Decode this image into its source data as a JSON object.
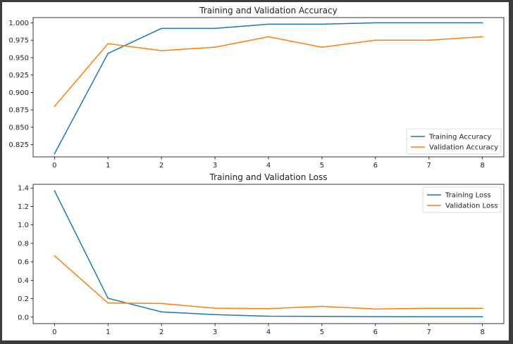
{
  "chart_data": [
    {
      "type": "line",
      "title": "Training and Validation Accuracy",
      "xlabel": "",
      "ylabel": "",
      "x": [
        0,
        1,
        2,
        3,
        4,
        5,
        6,
        7,
        8
      ],
      "xticks": [
        0,
        1,
        2,
        3,
        4,
        5,
        6,
        7,
        8
      ],
      "xlim": [
        -0.4,
        8.4
      ],
      "yticks": [
        0.825,
        0.85,
        0.875,
        0.9,
        0.925,
        0.95,
        0.975,
        1.0
      ],
      "ytick_labels": [
        "0.825",
        "0.850",
        "0.875",
        "0.900",
        "0.925",
        "0.950",
        "0.975",
        "1.000"
      ],
      "ylim": [
        0.8075,
        1.0075
      ],
      "grid": false,
      "legend": "lower-right",
      "series": [
        {
          "name": "Training Accuracy",
          "color": "#1f77b4",
          "values": [
            0.812,
            0.956,
            0.992,
            0.992,
            0.998,
            0.998,
            1.0,
            1.0,
            1.0
          ]
        },
        {
          "name": "Validation Accuracy",
          "color": "#ff7f0e",
          "values": [
            0.88,
            0.97,
            0.96,
            0.965,
            0.98,
            0.965,
            0.975,
            0.975,
            0.98
          ]
        }
      ]
    },
    {
      "type": "line",
      "title": "Training and Validation Loss",
      "xlabel": "",
      "ylabel": "",
      "x": [
        0,
        1,
        2,
        3,
        4,
        5,
        6,
        7,
        8
      ],
      "xticks": [
        0,
        1,
        2,
        3,
        4,
        5,
        6,
        7,
        8
      ],
      "xlim": [
        -0.4,
        8.4
      ],
      "yticks": [
        0.0,
        0.2,
        0.4,
        0.6,
        0.8,
        1.0,
        1.2,
        1.4
      ],
      "ytick_labels": [
        "0.0",
        "0.2",
        "0.4",
        "0.6",
        "0.8",
        "1.0",
        "1.2",
        "1.4"
      ],
      "ylim": [
        -0.07,
        1.44
      ],
      "grid": false,
      "legend": "upper-right",
      "series": [
        {
          "name": "Training Loss",
          "color": "#1f77b4",
          "values": [
            1.37,
            0.205,
            0.057,
            0.027,
            0.01,
            0.008,
            0.005,
            0.004,
            0.004
          ]
        },
        {
          "name": "Validation Loss",
          "color": "#ff7f0e",
          "values": [
            0.665,
            0.153,
            0.148,
            0.097,
            0.092,
            0.117,
            0.088,
            0.096,
            0.096
          ]
        }
      ]
    }
  ]
}
